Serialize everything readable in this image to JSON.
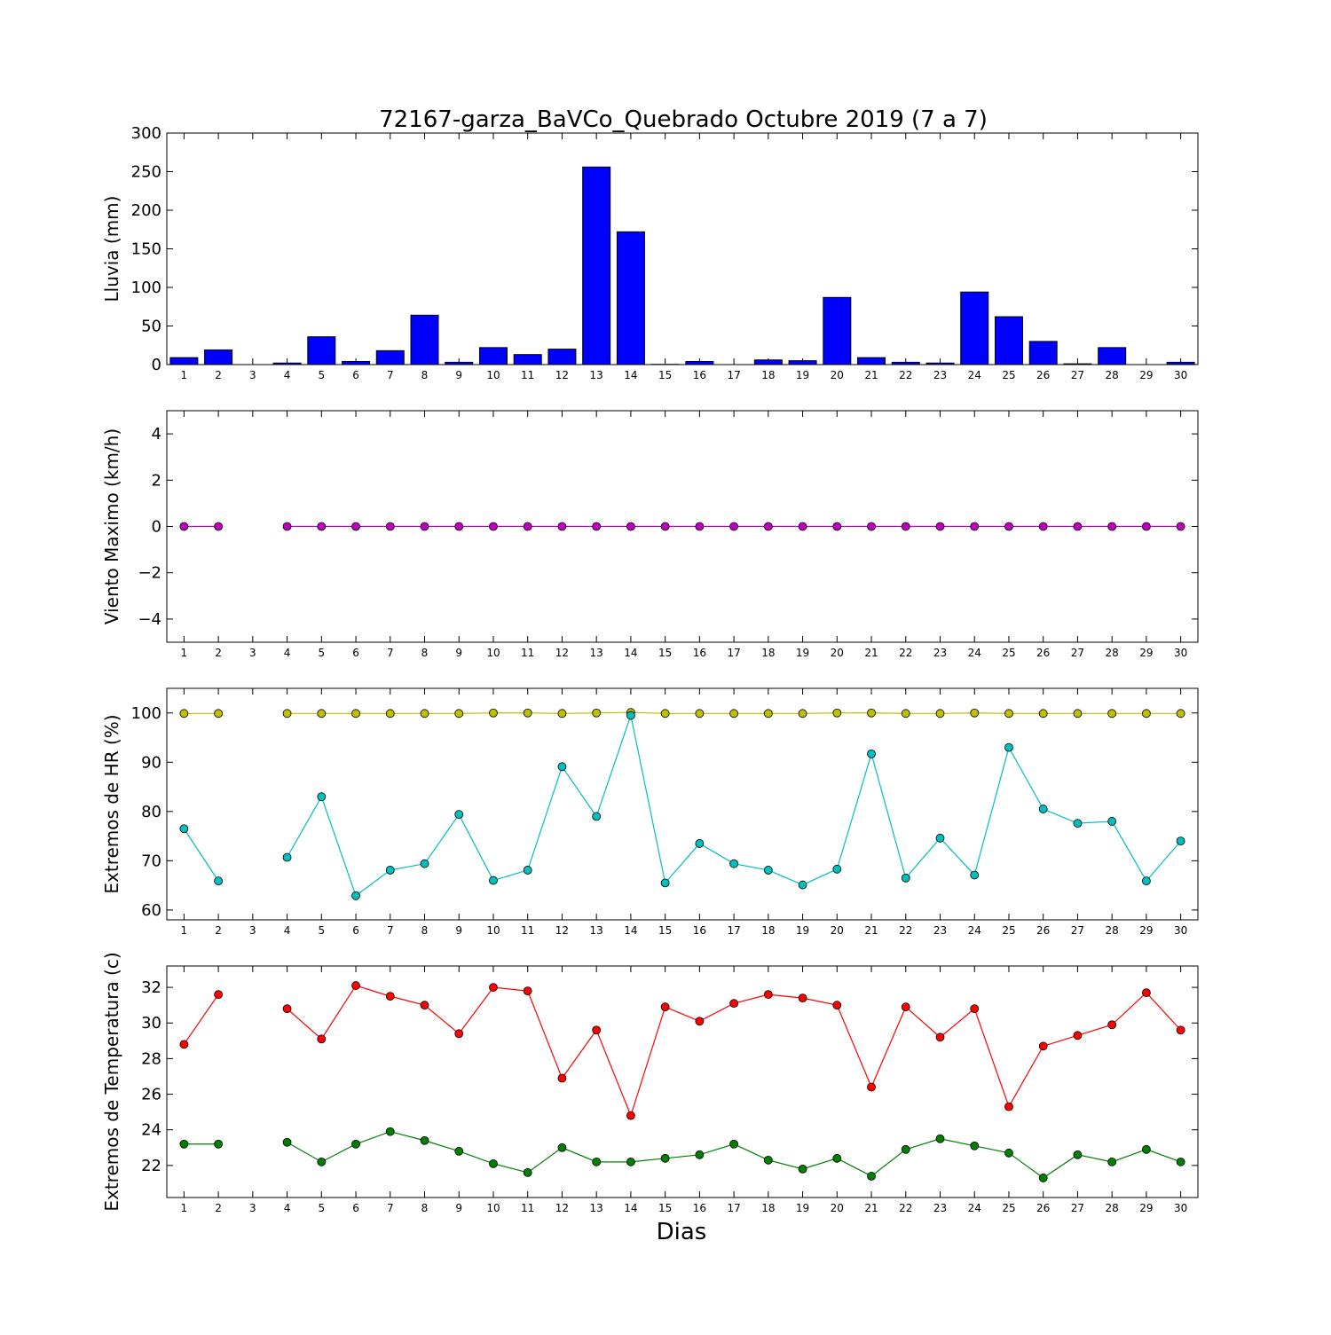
{
  "chart_data": [
    {
      "type": "bar",
      "title": "72167-garza_BaVCo_Quebrado Octubre 2019  (7 a 7)",
      "ylabel": "Lluvia (mm)",
      "ylim": [
        0,
        300
      ],
      "yticks": [
        0,
        50,
        100,
        150,
        200,
        250,
        300
      ],
      "categories": [
        1,
        2,
        3,
        4,
        5,
        6,
        7,
        8,
        9,
        10,
        11,
        12,
        13,
        14,
        15,
        16,
        17,
        18,
        19,
        20,
        21,
        22,
        23,
        24,
        25,
        26,
        27,
        28,
        29,
        30
      ],
      "series": [
        {
          "color": "#0000ff",
          "values": [
            9,
            19,
            null,
            2,
            36,
            4,
            18,
            64,
            3,
            22,
            13,
            20,
            256,
            172,
            0.3,
            4,
            0,
            6,
            5,
            87,
            9,
            3,
            2,
            94,
            62,
            30,
            1,
            22,
            null,
            3
          ]
        }
      ]
    },
    {
      "type": "line",
      "ylabel": "Viento Maximo (km/h)",
      "ylim": [
        -5,
        5
      ],
      "yticks": [
        -4,
        -2,
        0,
        2,
        4
      ],
      "categories": [
        1,
        2,
        3,
        4,
        5,
        6,
        7,
        8,
        9,
        10,
        11,
        12,
        13,
        14,
        15,
        16,
        17,
        18,
        19,
        20,
        21,
        22,
        23,
        24,
        25,
        26,
        27,
        28,
        29,
        30
      ],
      "series": [
        {
          "color": "#bf00bf",
          "values": [
            0,
            0,
            null,
            0,
            0,
            0,
            0,
            0,
            0,
            0,
            0,
            0,
            0,
            0,
            0,
            0,
            0,
            0,
            0,
            0,
            0,
            0,
            0,
            0,
            0,
            0,
            0,
            0,
            0,
            0
          ]
        }
      ]
    },
    {
      "type": "line",
      "ylabel": "Extremos de HR (%)",
      "ylim": [
        58,
        105
      ],
      "yticks": [
        60,
        70,
        80,
        90,
        100
      ],
      "categories": [
        1,
        2,
        3,
        4,
        5,
        6,
        7,
        8,
        9,
        10,
        11,
        12,
        13,
        14,
        15,
        16,
        17,
        18,
        19,
        20,
        21,
        22,
        23,
        24,
        25,
        26,
        27,
        28,
        29,
        30
      ],
      "series": [
        {
          "color": "#bfbf00",
          "values": [
            99.9,
            99.9,
            null,
            99.9,
            99.9,
            99.9,
            99.9,
            99.9,
            99.9,
            100,
            100,
            99.9,
            100,
            100.1,
            99.9,
            99.9,
            99.9,
            99.9,
            99.9,
            100,
            100,
            99.9,
            99.9,
            100,
            99.9,
            99.9,
            99.9,
            99.9,
            99.9,
            99.9
          ]
        },
        {
          "color": "#00bfbf",
          "values": [
            76.5,
            65.9,
            null,
            70.7,
            83,
            62.9,
            68.1,
            69.4,
            79.4,
            66,
            68.1,
            89.1,
            79,
            99.5,
            65.5,
            73.5,
            69.4,
            68.1,
            65.1,
            68.3,
            91.7,
            66.5,
            74.6,
            67.1,
            93,
            80.5,
            77.6,
            78,
            65.9,
            74
          ]
        }
      ]
    },
    {
      "type": "line",
      "ylabel": "Extremos de Temperatura (c)",
      "xlabel": "Dias",
      "ylim": [
        20.2,
        33.2
      ],
      "yticks": [
        22,
        24,
        26,
        28,
        30,
        32
      ],
      "categories": [
        1,
        2,
        3,
        4,
        5,
        6,
        7,
        8,
        9,
        10,
        11,
        12,
        13,
        14,
        15,
        16,
        17,
        18,
        19,
        20,
        21,
        22,
        23,
        24,
        25,
        26,
        27,
        28,
        29,
        30
      ],
      "series": [
        {
          "color": "#ff0000",
          "values": [
            28.8,
            31.6,
            null,
            30.8,
            29.1,
            32.1,
            31.5,
            31,
            29.4,
            32,
            31.8,
            26.9,
            29.6,
            24.8,
            30.9,
            30.1,
            31.1,
            31.6,
            31.4,
            31,
            26.4,
            30.9,
            29.2,
            30.8,
            25.3,
            28.7,
            29.3,
            29.9,
            31.7,
            29.6
          ]
        },
        {
          "color": "#008000",
          "values": [
            23.2,
            23.2,
            null,
            23.3,
            22.2,
            23.2,
            23.9,
            23.4,
            22.8,
            22.1,
            21.6,
            23,
            22.2,
            22.2,
            22.4,
            22.6,
            23.2,
            22.3,
            21.8,
            22.4,
            21.4,
            22.9,
            23.5,
            23.1,
            22.7,
            21.3,
            22.6,
            22.2,
            22.9,
            22.2
          ]
        }
      ]
    }
  ]
}
